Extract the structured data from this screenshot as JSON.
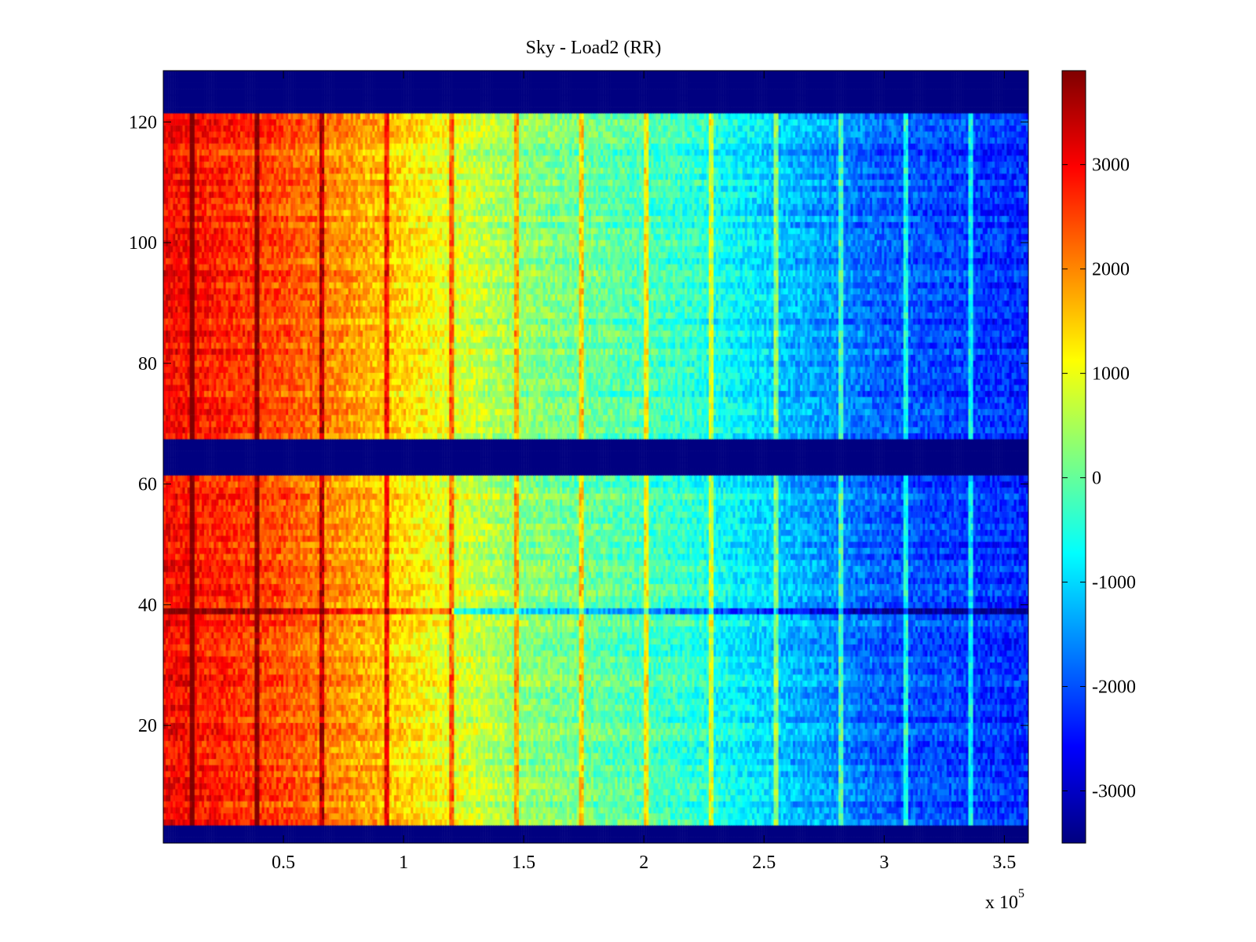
{
  "chart_data": {
    "type": "heatmap",
    "title": "Sky - Load2 (RR)",
    "xlabel": "",
    "ylabel": "",
    "x_multiplier_label": "x 10",
    "x_multiplier_exponent": "5",
    "xlim": [
      0.0,
      3.6
    ],
    "ylim": [
      0.5,
      128.5
    ],
    "x_ticks": [
      {
        "value": 0.5,
        "label": "0.5"
      },
      {
        "value": 1.0,
        "label": "1"
      },
      {
        "value": 1.5,
        "label": "1.5"
      },
      {
        "value": 2.0,
        "label": "2"
      },
      {
        "value": 2.5,
        "label": "2.5"
      },
      {
        "value": 3.0,
        "label": "3"
      },
      {
        "value": 3.5,
        "label": "3.5"
      }
    ],
    "y_ticks": [
      {
        "value": 20,
        "label": "20"
      },
      {
        "value": 40,
        "label": "40"
      },
      {
        "value": 60,
        "label": "60"
      },
      {
        "value": 80,
        "label": "80"
      },
      {
        "value": 100,
        "label": "100"
      },
      {
        "value": 120,
        "label": "120"
      }
    ],
    "colormap": "jet",
    "clim": [
      -3500,
      3900
    ],
    "colorbar_ticks": [
      {
        "value": 3000,
        "label": "3000"
      },
      {
        "value": 2000,
        "label": "2000"
      },
      {
        "value": 1000,
        "label": "1000"
      },
      {
        "value": 0,
        "label": "0"
      },
      {
        "value": -1000,
        "label": "-1000"
      },
      {
        "value": -2000,
        "label": "-2000"
      },
      {
        "value": -3000,
        "label": "-3000"
      }
    ],
    "masked_row_bands": [
      [
        0.5,
        3.5
      ],
      [
        61.5,
        67.5
      ],
      [
        121.5,
        128.5
      ]
    ],
    "column_profile": [
      [
        0.0,
        3000
      ],
      [
        0.5,
        2400
      ],
      [
        0.9,
        1600
      ],
      [
        1.2,
        900
      ],
      [
        1.5,
        300
      ],
      [
        1.8,
        0
      ],
      [
        2.2,
        -400
      ],
      [
        2.6,
        -1200
      ],
      [
        3.0,
        -1900
      ],
      [
        3.6,
        -2300
      ]
    ],
    "spike_columns": [
      0.12,
      0.39,
      0.66,
      0.93,
      1.2,
      1.47,
      1.74,
      2.01,
      2.28,
      2.55,
      2.82,
      3.09,
      3.36
    ],
    "strong_row": 39
  }
}
